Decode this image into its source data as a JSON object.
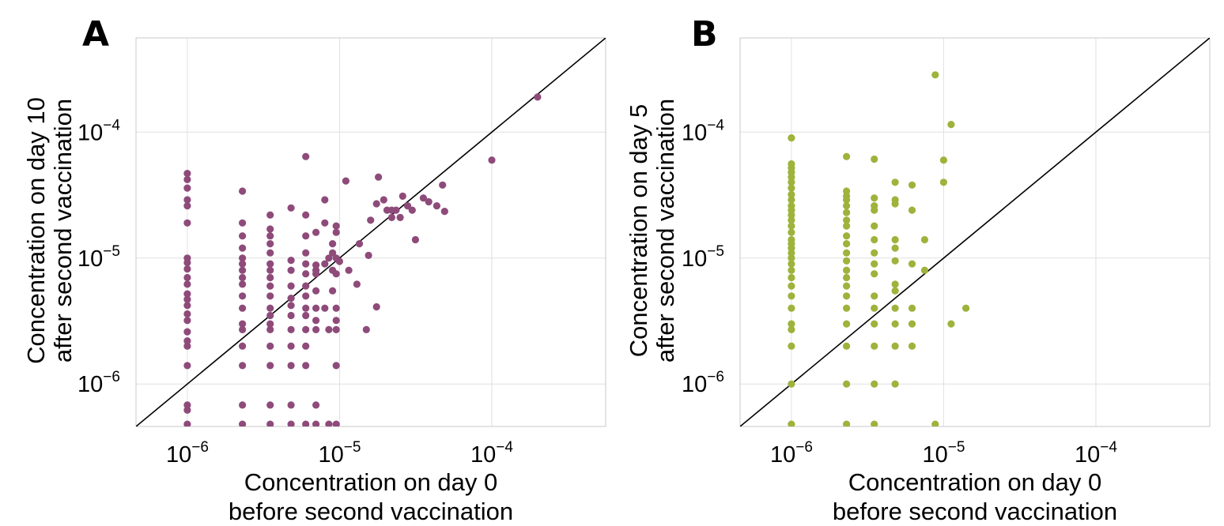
{
  "chart_data": [
    {
      "id": "A",
      "type": "scatter",
      "panel_label": "A",
      "log_scale": true,
      "xlim": [
        4.6e-07,
        0.00056
      ],
      "ylim": [
        4.6e-07,
        0.00056
      ],
      "xticks": [
        1e-06,
        1e-05,
        0.0001
      ],
      "yticks": [
        1e-06,
        1e-05,
        0.0001
      ],
      "tick_base": "10",
      "tick_exponents": [
        "−6",
        "−5",
        "−4"
      ],
      "xlabel": [
        "Concentration on day 0",
        "before second vaccination"
      ],
      "ylabel": [
        "Concentration on day 10",
        "after second vaccination"
      ],
      "reference_line": "y = x",
      "color": "#8e4b7a",
      "points": [
        [
          1e-06,
          4.7e-05
        ],
        [
          1e-06,
          4.2e-05
        ],
        [
          1e-06,
          3.6e-05
        ],
        [
          1e-06,
          2.9e-05
        ],
        [
          1e-06,
          2.6e-05
        ],
        [
          1e-06,
          1.9e-05
        ],
        [
          1e-06,
          1e-05
        ],
        [
          1e-06,
          9.2e-06
        ],
        [
          1e-06,
          8.2e-06
        ],
        [
          1e-06,
          7e-06
        ],
        [
          1e-06,
          6.2e-06
        ],
        [
          1e-06,
          5.2e-06
        ],
        [
          1e-06,
          4.7e-06
        ],
        [
          1e-06,
          4.2e-06
        ],
        [
          1e-06,
          3.6e-06
        ],
        [
          1e-06,
          3.2e-06
        ],
        [
          1e-06,
          2.6e-06
        ],
        [
          1e-06,
          2.2e-06
        ],
        [
          1e-06,
          2e-06
        ],
        [
          1e-06,
          1.4e-06
        ],
        [
          1e-06,
          6.8e-07
        ],
        [
          1e-06,
          6.2e-07
        ],
        [
          1e-06,
          4.8e-07
        ],
        [
          2.3e-06,
          3.4e-05
        ],
        [
          2.3e-06,
          1.9e-05
        ],
        [
          2.3e-06,
          1.5e-05
        ],
        [
          2.3e-06,
          1.2e-05
        ],
        [
          2.3e-06,
          1e-05
        ],
        [
          2.3e-06,
          9e-06
        ],
        [
          2.3e-06,
          8e-06
        ],
        [
          2.3e-06,
          7e-06
        ],
        [
          2.3e-06,
          6.2e-06
        ],
        [
          2.3e-06,
          5e-06
        ],
        [
          2.3e-06,
          4e-06
        ],
        [
          2.3e-06,
          3e-06
        ],
        [
          2.3e-06,
          2.7e-06
        ],
        [
          2.3e-06,
          2e-06
        ],
        [
          2.3e-06,
          1.4e-06
        ],
        [
          2.3e-06,
          6.8e-07
        ],
        [
          2.3e-06,
          4.8e-07
        ],
        [
          3.5e-06,
          2.2e-05
        ],
        [
          3.5e-06,
          1.7e-05
        ],
        [
          3.5e-06,
          1.5e-05
        ],
        [
          3.5e-06,
          1.3e-05
        ],
        [
          3.5e-06,
          1.1e-05
        ],
        [
          3.5e-06,
          9e-06
        ],
        [
          3.5e-06,
          8e-06
        ],
        [
          3.5e-06,
          7e-06
        ],
        [
          3.5e-06,
          6e-06
        ],
        [
          3.5e-06,
          5e-06
        ],
        [
          3.5e-06,
          4e-06
        ],
        [
          3.5e-06,
          3.5e-06
        ],
        [
          3.5e-06,
          3e-06
        ],
        [
          3.5e-06,
          2.7e-06
        ],
        [
          3.5e-06,
          2e-06
        ],
        [
          3.5e-06,
          1.4e-06
        ],
        [
          3.5e-06,
          6.8e-07
        ],
        [
          3.5e-06,
          4.8e-07
        ],
        [
          4.8e-06,
          2.5e-05
        ],
        [
          4.8e-06,
          9.6e-06
        ],
        [
          4.8e-06,
          8e-06
        ],
        [
          4.8e-06,
          6e-06
        ],
        [
          4.8e-06,
          4.8e-06
        ],
        [
          4.8e-06,
          4.2e-06
        ],
        [
          4.8e-06,
          3.5e-06
        ],
        [
          4.8e-06,
          2.7e-06
        ],
        [
          4.8e-06,
          2e-06
        ],
        [
          4.8e-06,
          1.4e-06
        ],
        [
          4.8e-06,
          6.8e-07
        ],
        [
          4.8e-06,
          4.8e-07
        ],
        [
          6e-06,
          6.4e-05
        ],
        [
          6e-06,
          2.2e-05
        ],
        [
          6e-06,
          1.5e-05
        ],
        [
          6e-06,
          1.1e-05
        ],
        [
          6e-06,
          9e-06
        ],
        [
          6e-06,
          7.5e-06
        ],
        [
          6e-06,
          6e-06
        ],
        [
          6e-06,
          5e-06
        ],
        [
          6e-06,
          4e-06
        ],
        [
          6e-06,
          3.5e-06
        ],
        [
          6e-06,
          2.7e-06
        ],
        [
          6e-06,
          2e-06
        ],
        [
          6e-06,
          1.4e-06
        ],
        [
          6e-06,
          4.8e-07
        ],
        [
          7e-06,
          1.6e-05
        ],
        [
          7e-06,
          8.8e-06
        ],
        [
          7e-06,
          8e-06
        ],
        [
          7e-06,
          7.5e-06
        ],
        [
          7e-06,
          5.5e-06
        ],
        [
          7e-06,
          4e-06
        ],
        [
          7e-06,
          3.2e-06
        ],
        [
          7e-06,
          2.7e-06
        ],
        [
          7e-06,
          6.8e-07
        ],
        [
          7e-06,
          4.8e-07
        ],
        [
          8e-06,
          2.9e-05
        ],
        [
          8e-06,
          1.9e-05
        ],
        [
          8e-06,
          9e-06
        ],
        [
          8e-06,
          4e-06
        ],
        [
          8.5e-06,
          1e-05
        ],
        [
          8.5e-06,
          2.7e-06
        ],
        [
          8.5e-06,
          4.8e-07
        ],
        [
          9e-06,
          1.3e-05
        ],
        [
          9e-06,
          1.1e-05
        ],
        [
          9e-06,
          8e-06
        ],
        [
          9e-06,
          5.5e-06
        ],
        [
          9.5e-06,
          1.8e-05
        ],
        [
          9.5e-06,
          1.6e-05
        ],
        [
          9.5e-06,
          1e-05
        ],
        [
          9.5e-06,
          7.5e-06
        ],
        [
          9.5e-06,
          4e-06
        ],
        [
          9.5e-06,
          3.2e-06
        ],
        [
          9.5e-06,
          2.7e-06
        ],
        [
          9.5e-06,
          1.4e-06
        ],
        [
          9.5e-06,
          4.8e-07
        ],
        [
          1e-05,
          9.4e-06
        ],
        [
          1.1e-05,
          4.1e-05
        ],
        [
          1.15e-05,
          8e-06
        ],
        [
          1.3e-05,
          6.2e-06
        ],
        [
          1.35e-05,
          1.3e-05
        ],
        [
          1.5e-05,
          2.7e-06
        ],
        [
          1.55e-05,
          1.05e-05
        ],
        [
          1.6e-05,
          2e-05
        ],
        [
          1.75e-05,
          2.7e-05
        ],
        [
          1.75e-05,
          4.1e-06
        ],
        [
          1.8e-05,
          4.4e-05
        ],
        [
          1.95e-05,
          2.9e-05
        ],
        [
          2.05e-05,
          2.4e-05
        ],
        [
          2.2e-05,
          2.4e-05
        ],
        [
          2.2e-05,
          2.1e-05
        ],
        [
          2.35e-05,
          2.4e-05
        ],
        [
          2.5e-05,
          2.1e-05
        ],
        [
          2.6e-05,
          3.1e-05
        ],
        [
          2.8e-05,
          2.6e-05
        ],
        [
          3e-05,
          2.4e-05
        ],
        [
          3.15e-05,
          1.4e-05
        ],
        [
          3.55e-05,
          3e-05
        ],
        [
          3.85e-05,
          2.8e-05
        ],
        [
          4.35e-05,
          2.6e-05
        ],
        [
          4.75e-05,
          3.8e-05
        ],
        [
          4.9e-05,
          2.35e-05
        ],
        [
          0.0001,
          6e-05
        ],
        [
          0.0002,
          0.00019
        ]
      ]
    },
    {
      "id": "B",
      "type": "scatter",
      "panel_label": "B",
      "log_scale": true,
      "xlim": [
        4.6e-07,
        0.00056
      ],
      "ylim": [
        4.6e-07,
        0.00056
      ],
      "xticks": [
        1e-06,
        1e-05,
        0.0001
      ],
      "yticks": [
        1e-06,
        1e-05,
        0.0001
      ],
      "tick_base": "10",
      "tick_exponents": [
        "−6",
        "−5",
        "−4"
      ],
      "xlabel": [
        "Concentration on day 0",
        "before second vaccination"
      ],
      "ylabel": [
        "Concentration on day 5",
        "after second vaccination"
      ],
      "reference_line": "y = x",
      "color": "#9db33b",
      "points": [
        [
          1e-06,
          9e-05
        ],
        [
          1e-06,
          5.6e-05
        ],
        [
          1e-06,
          5.2e-05
        ],
        [
          1e-06,
          4.8e-05
        ],
        [
          1e-06,
          4.4e-05
        ],
        [
          1e-06,
          4e-05
        ],
        [
          1e-06,
          3.6e-05
        ],
        [
          1e-06,
          3.2e-05
        ],
        [
          1e-06,
          2.9e-05
        ],
        [
          1e-06,
          2.6e-05
        ],
        [
          1e-06,
          2.4e-05
        ],
        [
          1e-06,
          2.2e-05
        ],
        [
          1e-06,
          2e-05
        ],
        [
          1e-06,
          1.8e-05
        ],
        [
          1e-06,
          1.6e-05
        ],
        [
          1e-06,
          1.4e-05
        ],
        [
          1e-06,
          1.3e-05
        ],
        [
          1e-06,
          1.2e-05
        ],
        [
          1e-06,
          1.1e-05
        ],
        [
          1e-06,
          1e-05
        ],
        [
          1e-06,
          9e-06
        ],
        [
          1e-06,
          8e-06
        ],
        [
          1e-06,
          7e-06
        ],
        [
          1e-06,
          6e-06
        ],
        [
          1e-06,
          5e-06
        ],
        [
          1e-06,
          4e-06
        ],
        [
          1e-06,
          3e-06
        ],
        [
          1e-06,
          2.7e-06
        ],
        [
          1e-06,
          2e-06
        ],
        [
          1e-06,
          1e-06
        ],
        [
          1e-06,
          4.8e-07
        ],
        [
          2.3e-06,
          6.4e-05
        ],
        [
          2.3e-06,
          3.4e-05
        ],
        [
          2.3e-06,
          3.1e-05
        ],
        [
          2.3e-06,
          2.9e-05
        ],
        [
          2.3e-06,
          2.6e-05
        ],
        [
          2.3e-06,
          2.3e-05
        ],
        [
          2.3e-06,
          2e-05
        ],
        [
          2.3e-06,
          1.8e-05
        ],
        [
          2.3e-06,
          1.5e-05
        ],
        [
          2.3e-06,
          1.3e-05
        ],
        [
          2.3e-06,
          1.1e-05
        ],
        [
          2.3e-06,
          9.5e-06
        ],
        [
          2.3e-06,
          8e-06
        ],
        [
          2.3e-06,
          7e-06
        ],
        [
          2.3e-06,
          6e-06
        ],
        [
          2.3e-06,
          5e-06
        ],
        [
          2.3e-06,
          4e-06
        ],
        [
          2.3e-06,
          3e-06
        ],
        [
          2.3e-06,
          2e-06
        ],
        [
          2.3e-06,
          1e-06
        ],
        [
          2.3e-06,
          4.8e-07
        ],
        [
          3.5e-06,
          6.1e-05
        ],
        [
          3.5e-06,
          3e-05
        ],
        [
          3.5e-06,
          2.6e-05
        ],
        [
          3.5e-06,
          2.4e-05
        ],
        [
          3.5e-06,
          1.8e-05
        ],
        [
          3.5e-06,
          1.4e-05
        ],
        [
          3.5e-06,
          1.1e-05
        ],
        [
          3.5e-06,
          9e-06
        ],
        [
          3.5e-06,
          7.5e-06
        ],
        [
          3.5e-06,
          5e-06
        ],
        [
          3.5e-06,
          4e-06
        ],
        [
          3.5e-06,
          3e-06
        ],
        [
          3.5e-06,
          2e-06
        ],
        [
          3.5e-06,
          1e-06
        ],
        [
          3.5e-06,
          4.8e-07
        ],
        [
          4.8e-06,
          4e-05
        ],
        [
          4.8e-06,
          2.9e-05
        ],
        [
          4.8e-06,
          2.7e-05
        ],
        [
          4.8e-06,
          1.4e-05
        ],
        [
          4.8e-06,
          1.2e-05
        ],
        [
          4.8e-06,
          9.5e-06
        ],
        [
          4.8e-06,
          6.2e-06
        ],
        [
          4.8e-06,
          5.5e-06
        ],
        [
          4.8e-06,
          4e-06
        ],
        [
          4.8e-06,
          3e-06
        ],
        [
          4.8e-06,
          2e-06
        ],
        [
          4.8e-06,
          1e-06
        ],
        [
          6.2e-06,
          3.8e-05
        ],
        [
          6.2e-06,
          2.4e-05
        ],
        [
          6.2e-06,
          9e-06
        ],
        [
          6.2e-06,
          4e-06
        ],
        [
          6.2e-06,
          3e-06
        ],
        [
          6.2e-06,
          2e-06
        ],
        [
          7.5e-06,
          1.4e-05
        ],
        [
          7.5e-06,
          8e-06
        ],
        [
          8.8e-06,
          0.000285
        ],
        [
          8.8e-06,
          4.8e-07
        ],
        [
          1e-05,
          6e-05
        ],
        [
          1e-05,
          4e-05
        ],
        [
          1.12e-05,
          0.000115
        ],
        [
          1.12e-05,
          3e-06
        ],
        [
          1.4e-05,
          4e-06
        ]
      ]
    }
  ]
}
